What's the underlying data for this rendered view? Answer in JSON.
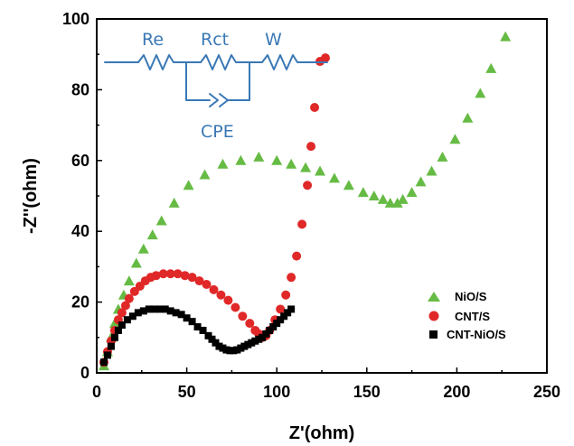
{
  "chart_data": {
    "type": "scatter",
    "xlabel": "Z'(ohm)",
    "ylabel": "-Z''(ohm)",
    "xlim": [
      0,
      250
    ],
    "ylim": [
      0,
      100
    ],
    "x_ticks": [
      "0",
      "50",
      "100",
      "150",
      "200",
      "250"
    ],
    "y_ticks": [
      "0",
      "20",
      "40",
      "60",
      "80",
      "100"
    ],
    "legend_position": "bottom-right",
    "series": [
      {
        "name": "NiO/S",
        "marker": "triangle",
        "color": "#66bb44",
        "x": [
          4,
          6,
          8,
          10,
          12,
          15,
          18,
          22,
          26,
          31,
          36,
          43,
          51,
          60,
          70,
          80,
          90,
          100,
          108,
          116,
          124,
          132,
          140,
          148,
          154,
          159,
          163,
          167,
          170,
          175,
          180,
          186,
          192,
          199,
          206,
          213,
          219,
          227
        ],
        "y": [
          2,
          6,
          10,
          14,
          18,
          22,
          26,
          31,
          35,
          39,
          43,
          48,
          53,
          56,
          59,
          60,
          61,
          60,
          59,
          58,
          57,
          55,
          53,
          51,
          50,
          49,
          48,
          48,
          49,
          51,
          54,
          57,
          61,
          66,
          72,
          79,
          86,
          95
        ]
      },
      {
        "name": "CNT/S",
        "marker": "circle",
        "color": "#e02828",
        "x": [
          4,
          6,
          8,
          10,
          12,
          14,
          16,
          18,
          21,
          24,
          27,
          30,
          33,
          37,
          41,
          45,
          49,
          53,
          57,
          61,
          65,
          69,
          73,
          77,
          81,
          85,
          88,
          90,
          92,
          94,
          96,
          99,
          102,
          105,
          108,
          111,
          114,
          117,
          119,
          121,
          124,
          127
        ],
        "y": [
          3,
          6,
          9,
          12,
          15,
          17,
          19,
          21,
          23,
          24.5,
          26,
          27,
          27.5,
          28,
          28,
          28,
          27.5,
          27,
          26,
          25,
          23.5,
          22,
          20.5,
          18.5,
          16,
          14,
          12,
          11,
          10,
          10.5,
          12,
          15,
          18,
          22,
          27,
          33,
          42,
          53,
          64,
          75,
          88,
          89
        ]
      },
      {
        "name": "CNT-NiO/S",
        "marker": "square",
        "color": "#000000",
        "x": [
          4,
          6,
          8,
          10,
          12,
          14,
          17,
          20,
          23,
          26,
          29,
          32,
          35,
          38,
          41,
          44,
          47,
          50,
          53,
          56,
          59,
          62,
          64,
          66,
          68,
          70,
          72,
          74,
          76,
          78,
          80,
          82,
          84,
          86,
          88,
          90,
          92,
          94,
          96,
          98,
          100,
          102,
          104,
          106,
          108
        ],
        "y": [
          3,
          5,
          7.5,
          10,
          12,
          13.5,
          15,
          16,
          17,
          17.5,
          18,
          18,
          18,
          18,
          17.5,
          17,
          16.5,
          15.5,
          14.5,
          13,
          12,
          10.5,
          9.5,
          8.5,
          7.5,
          7,
          6.5,
          6.3,
          6.3,
          6.5,
          7,
          7.5,
          8,
          8.5,
          9,
          9.5,
          10,
          11,
          12,
          13,
          14,
          15,
          16,
          17,
          18
        ]
      }
    ]
  },
  "circuit": {
    "labels": {
      "re": "Re",
      "rct": "Rct",
      "w": "W",
      "cpe": "CPE"
    },
    "color": "#3a78b5"
  }
}
